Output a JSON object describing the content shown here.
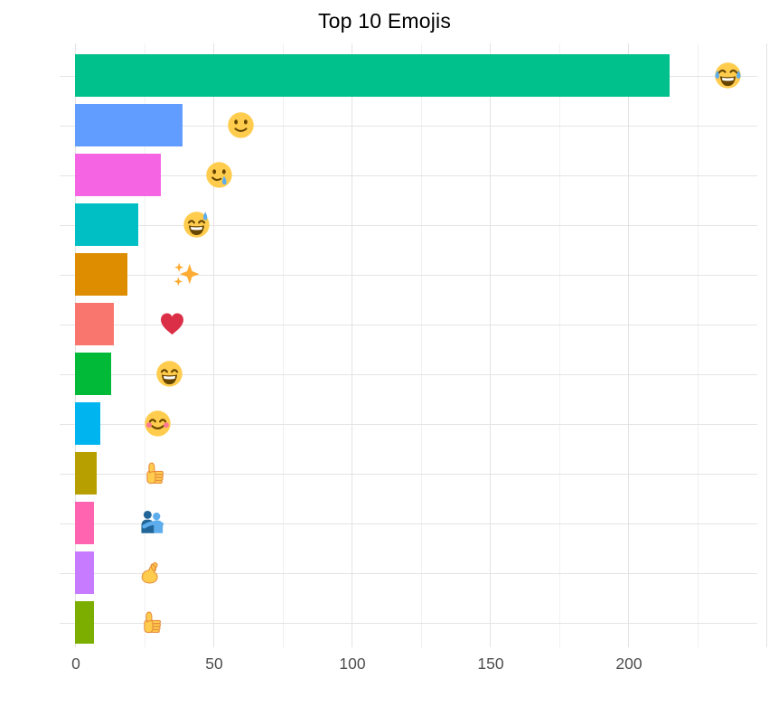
{
  "chart_data": {
    "type": "bar",
    "orientation": "horizontal",
    "title": "Top 10 Emojis",
    "xlabel": "",
    "ylabel": "",
    "x_ticks": [
      "0",
      "50",
      "100",
      "150",
      "200"
    ],
    "x_tick_values": [
      0,
      50,
      100,
      150,
      200
    ],
    "x_minor_step": 25,
    "xlim": [
      0,
      250
    ],
    "grid": "on",
    "legend": "none",
    "axis_text_color": "#4d4d4d",
    "emoji_label_offset": 21,
    "categories": [
      "😂",
      "🙂",
      "🥲",
      "😅",
      "✨",
      "❤️",
      "😄",
      "😊",
      "👍",
      "🫂",
      "🤌",
      "👍"
    ],
    "category_names": [
      "face-with-tears-of-joy",
      "slightly-smiling-face",
      "smiling-face-with-tear",
      "grinning-face-with-sweat",
      "sparkles",
      "red-heart",
      "grinning-face-with-smiling-eyes",
      "smiling-face-with-smiling-eyes",
      "thumbs-up",
      "people-hugging",
      "pinched-fingers",
      "thumbs-up"
    ],
    "values": [
      215,
      39,
      31,
      23,
      19,
      14,
      13,
      9,
      8,
      7,
      7,
      7
    ],
    "bar_colors": [
      "#00C08B",
      "#619CFF",
      "#F564E3",
      "#00BFC4",
      "#DE8C00",
      "#F8766D",
      "#00BA38",
      "#00B4F0",
      "#B79F00",
      "#FF64B0",
      "#C77CFF",
      "#7CAE00"
    ]
  }
}
